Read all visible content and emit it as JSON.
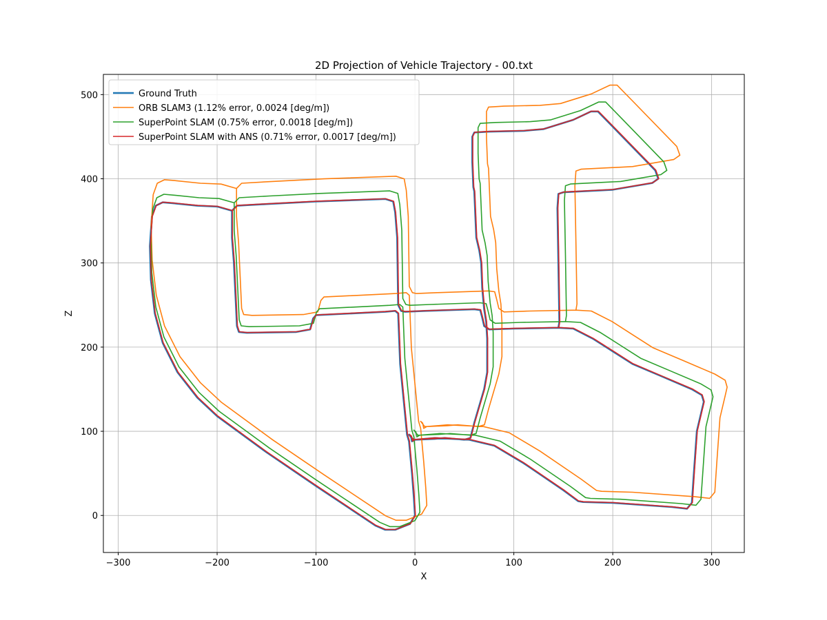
{
  "chart_data": {
    "type": "line",
    "title": "2D Projection of Vehicle Trajectory - 00.txt",
    "xlabel": "X",
    "ylabel": "Z",
    "xlim": [
      -315,
      333
    ],
    "ylim": [
      -44,
      524
    ],
    "xticks": [
      -300,
      -200,
      -100,
      0,
      100,
      200,
      300
    ],
    "yticks": [
      0,
      100,
      200,
      300,
      400,
      500
    ],
    "grid": true,
    "legend_position": "upper-left",
    "series": [
      {
        "name": "Ground Truth",
        "color": "#1f77b4",
        "width": 2.6,
        "dx": 0,
        "dy": 0,
        "sx": 1,
        "sy": 1
      },
      {
        "name": "ORB SLAM3 (1.12% error, 0.0024 [deg/m])",
        "color": "#ff7f0e",
        "width": 1.6,
        "dx": 12,
        "dy": 12,
        "sx": 1.04,
        "sy": 1.04
      },
      {
        "name": "SuperPoint SLAM (0.75% error, 0.0018 [deg/m])",
        "color": "#2ca02c",
        "width": 1.6,
        "dx": 5,
        "dy": 4,
        "sx": 1.015,
        "sy": 1.015
      },
      {
        "name": "SuperPoint SLAM with ANS (0.71% error, 0.0017 [deg/m])",
        "color": "#d62728",
        "width": 1.6,
        "dx": 0.5,
        "dy": 0.3,
        "sx": 1,
        "sy": 1
      }
    ],
    "ground_truth_path": [
      [
        0,
        0
      ],
      [
        -1,
        20
      ],
      [
        -3,
        50
      ],
      [
        -6,
        88
      ],
      [
        -8,
        96
      ],
      [
        -15,
        180
      ],
      [
        -17,
        240
      ],
      [
        -20,
        243
      ],
      [
        -30,
        242
      ],
      [
        -100,
        238
      ],
      [
        -103,
        234
      ],
      [
        -106,
        221
      ],
      [
        -120,
        218
      ],
      [
        -170,
        217
      ],
      [
        -178,
        218
      ],
      [
        -180,
        225
      ],
      [
        -183,
        300
      ],
      [
        -185,
        330
      ],
      [
        -185,
        362
      ],
      [
        -180,
        368
      ],
      [
        -150,
        370
      ],
      [
        -100,
        373
      ],
      [
        -30,
        376
      ],
      [
        -22,
        373
      ],
      [
        -20,
        360
      ],
      [
        -18,
        330
      ],
      [
        -17,
        250
      ],
      [
        -14,
        243
      ],
      [
        -10,
        242
      ],
      [
        10,
        243
      ],
      [
        60,
        245
      ],
      [
        66,
        244
      ],
      [
        68,
        235
      ],
      [
        70,
        225
      ],
      [
        75,
        221
      ],
      [
        100,
        222
      ],
      [
        145,
        223
      ],
      [
        146,
        230
      ],
      [
        145,
        300
      ],
      [
        144,
        365
      ],
      [
        145,
        382
      ],
      [
        150,
        384
      ],
      [
        200,
        387
      ],
      [
        240,
        395
      ],
      [
        246,
        400
      ],
      [
        243,
        410
      ],
      [
        200,
        462
      ],
      [
        185,
        480
      ],
      [
        178,
        480
      ],
      [
        160,
        470
      ],
      [
        130,
        459
      ],
      [
        110,
        457
      ],
      [
        75,
        456
      ],
      [
        60,
        455
      ],
      [
        58,
        450
      ],
      [
        58,
        420
      ],
      [
        59,
        390
      ],
      [
        60,
        385
      ],
      [
        62,
        330
      ],
      [
        65,
        315
      ],
      [
        67,
        300
      ],
      [
        68,
        270
      ],
      [
        70,
        245
      ],
      [
        72,
        230
      ],
      [
        73,
        210
      ],
      [
        73,
        170
      ],
      [
        70,
        150
      ],
      [
        60,
        110
      ],
      [
        56,
        92
      ],
      [
        50,
        90
      ],
      [
        30,
        92
      ],
      [
        20,
        91
      ],
      [
        0,
        90
      ],
      [
        -3,
        88
      ],
      [
        -4,
        94
      ],
      [
        -6,
        96
      ],
      [
        -2,
        90
      ],
      [
        0,
        90
      ],
      [
        20,
        92
      ],
      [
        55,
        90
      ],
      [
        80,
        83
      ],
      [
        110,
        62
      ],
      [
        150,
        30
      ],
      [
        165,
        17
      ],
      [
        170,
        16
      ],
      [
        200,
        15
      ],
      [
        260,
        10
      ],
      [
        275,
        8
      ],
      [
        280,
        15
      ],
      [
        282,
        50
      ],
      [
        285,
        100
      ],
      [
        290,
        125
      ],
      [
        292,
        135
      ],
      [
        290,
        143
      ],
      [
        280,
        150
      ],
      [
        250,
        165
      ],
      [
        220,
        180
      ],
      [
        200,
        195
      ],
      [
        180,
        210
      ],
      [
        160,
        222
      ],
      [
        145,
        223
      ],
      [
        100,
        222
      ],
      [
        75,
        221
      ],
      [
        70,
        225
      ],
      [
        68,
        235
      ],
      [
        66,
        244
      ],
      [
        60,
        245
      ],
      [
        10,
        243
      ],
      [
        -10,
        242
      ],
      [
        -14,
        243
      ],
      [
        -17,
        250
      ],
      [
        -18,
        330
      ],
      [
        -20,
        360
      ],
      [
        -22,
        373
      ],
      [
        -30,
        376
      ],
      [
        -100,
        373
      ],
      [
        -150,
        370
      ],
      [
        -180,
        368
      ],
      [
        -185,
        362
      ],
      [
        -185,
        330
      ],
      [
        -183,
        300
      ],
      [
        -180,
        225
      ],
      [
        -178,
        218
      ],
      [
        -170,
        217
      ],
      [
        -120,
        218
      ],
      [
        -106,
        221
      ],
      [
        -103,
        234
      ],
      [
        -100,
        238
      ],
      [
        -30,
        242
      ],
      [
        -20,
        243
      ],
      [
        -17,
        240
      ],
      [
        -15,
        180
      ],
      [
        -8,
        96
      ],
      [
        -6,
        88
      ],
      [
        -3,
        50
      ],
      [
        -1,
        20
      ],
      [
        0,
        0
      ],
      [
        -5,
        -10
      ],
      [
        -20,
        -17
      ],
      [
        -30,
        -17
      ],
      [
        -40,
        -12
      ],
      [
        -100,
        35
      ],
      [
        -150,
        75
      ],
      [
        -200,
        118
      ],
      [
        -220,
        140
      ],
      [
        -240,
        170
      ],
      [
        -255,
        205
      ],
      [
        -263,
        240
      ],
      [
        -267,
        280
      ],
      [
        -268,
        320
      ],
      [
        -266,
        355
      ],
      [
        -262,
        368
      ],
      [
        -255,
        372
      ],
      [
        -245,
        371
      ],
      [
        -220,
        368
      ],
      [
        -200,
        367
      ],
      [
        -185,
        362
      ]
    ]
  }
}
